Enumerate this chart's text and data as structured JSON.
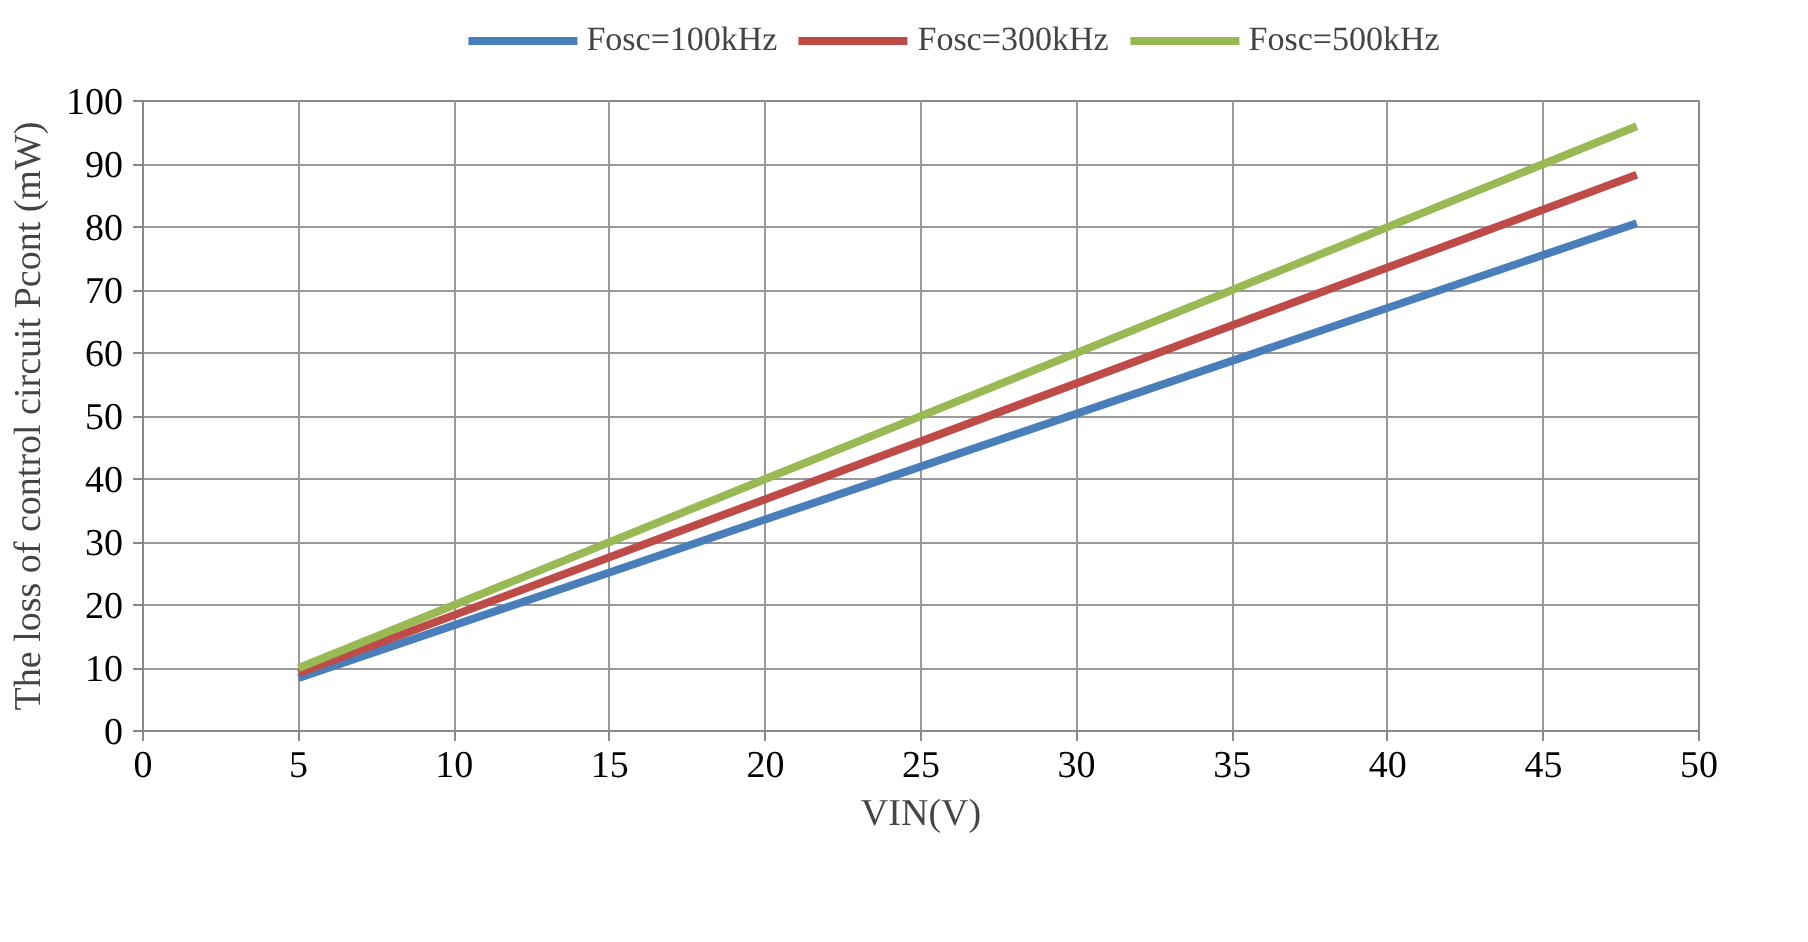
{
  "chart_data": {
    "type": "line",
    "xlabel": "VIN(V)",
    "ylabel": "The loss of control circuit Pcont (mW)",
    "x": [
      5,
      48
    ],
    "series": [
      {
        "name": "Fosc=100kHz",
        "color": "#4a7ebb",
        "values": [
          8.4,
          80.6
        ]
      },
      {
        "name": "Fosc=300kHz",
        "color": "#be4b48",
        "values": [
          9.2,
          88.3
        ]
      },
      {
        "name": "Fosc=500kHz",
        "color": "#98b954",
        "values": [
          10,
          96
        ]
      }
    ],
    "xlim": [
      0,
      50
    ],
    "xticks": [
      0,
      5,
      10,
      15,
      20,
      25,
      30,
      35,
      40,
      45,
      50
    ],
    "ylim": [
      0,
      100
    ],
    "yticks": [
      0,
      10,
      20,
      30,
      40,
      50,
      60,
      70,
      80,
      90,
      100
    ],
    "grid": true,
    "legend": "top",
    "marker": "none",
    "line_style": "solid"
  }
}
